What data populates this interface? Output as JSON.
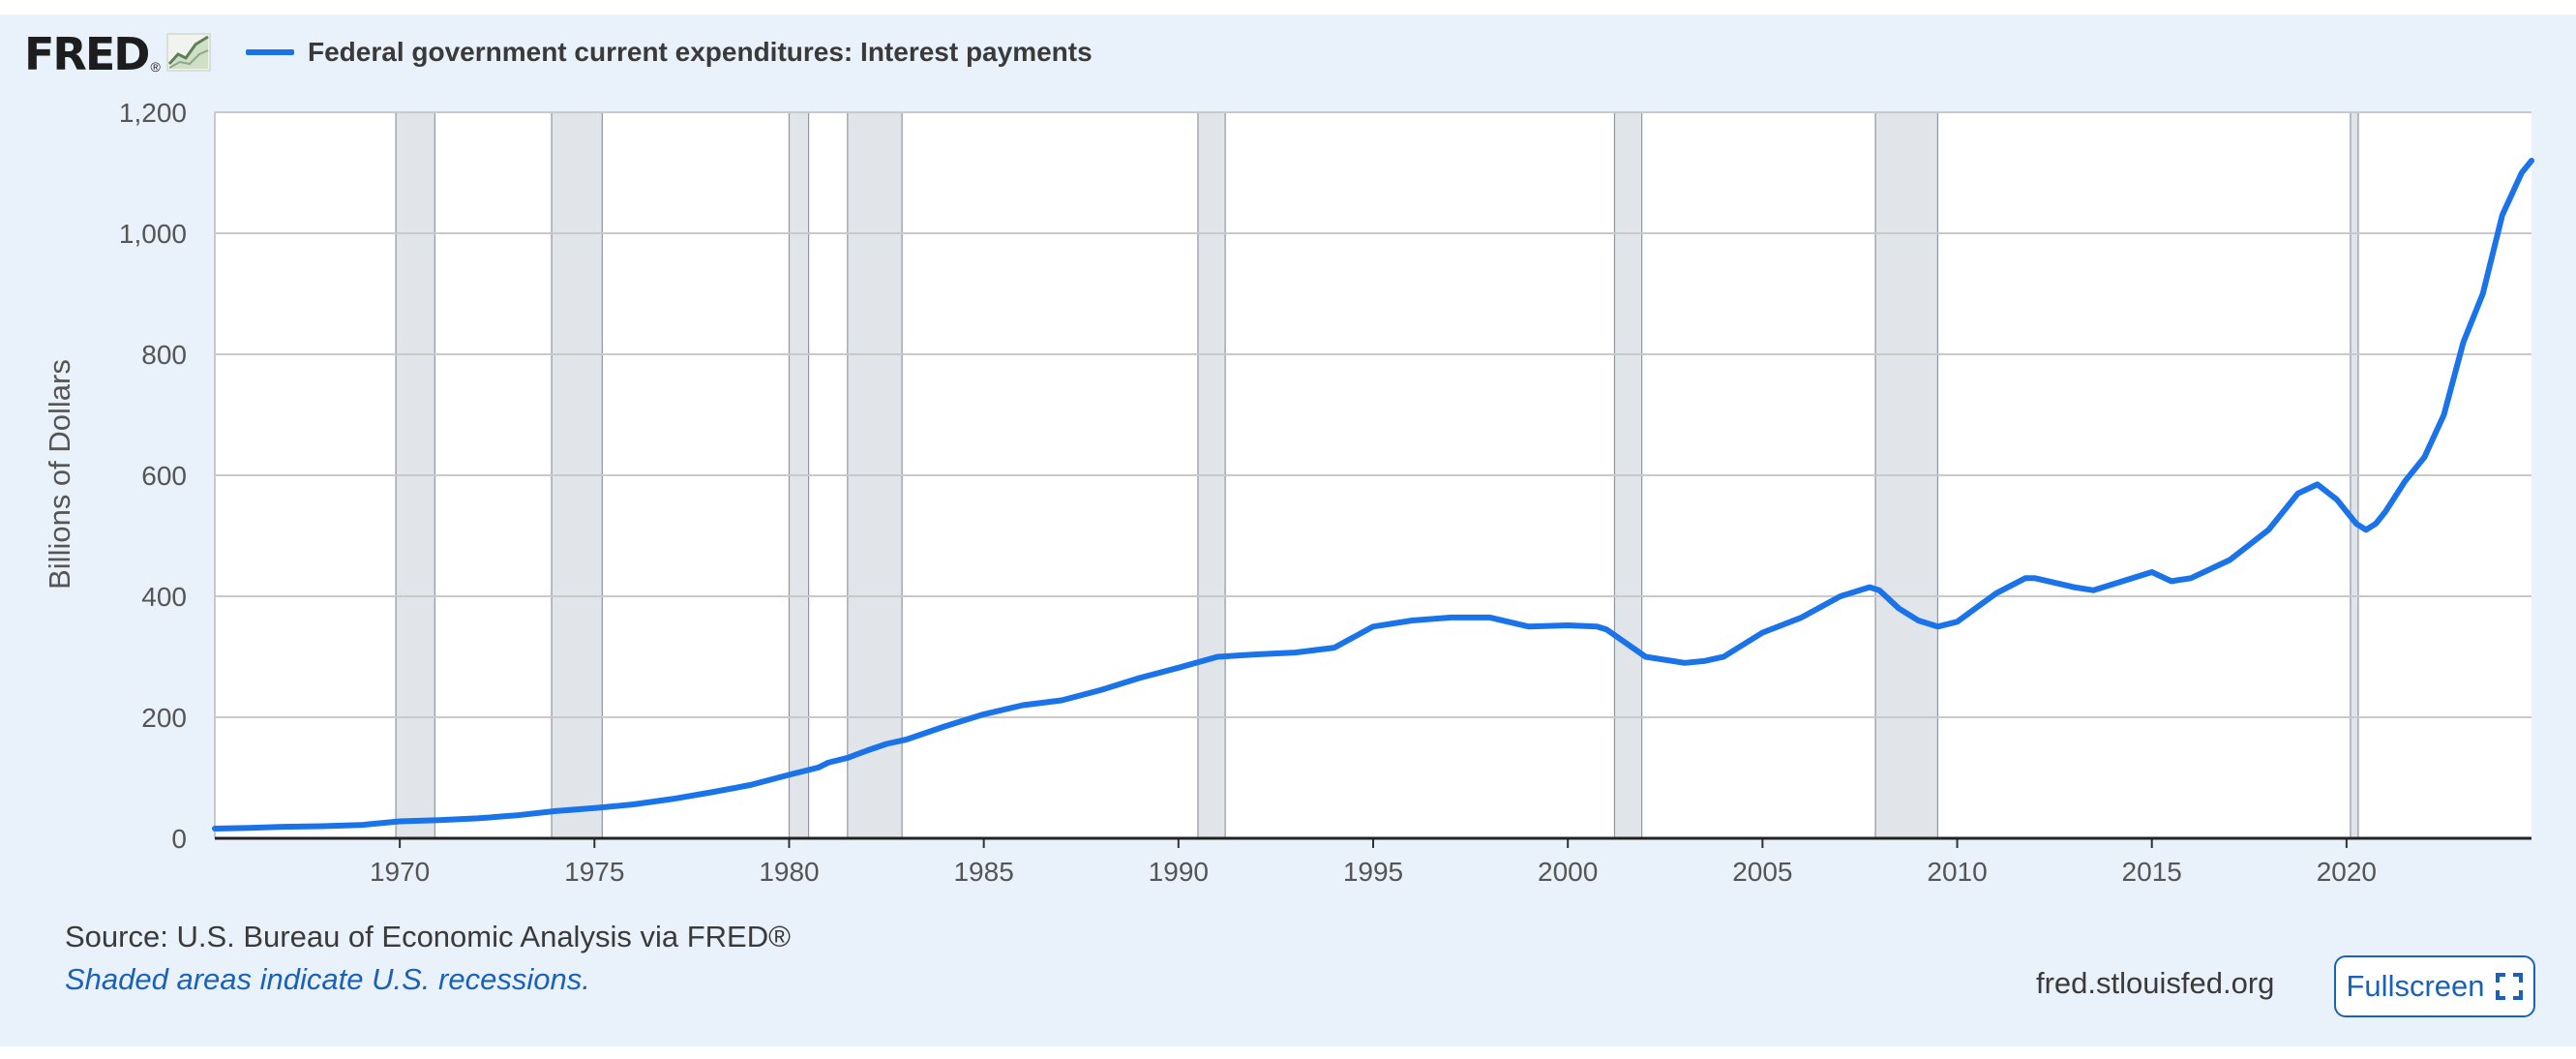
{
  "header": {
    "logo_text": "FRED",
    "logo_mark": "®",
    "logo_icon": "trend-line-chart-icon"
  },
  "footer": {
    "source": "Source: U.S. Bureau of Economic Analysis via FRED®",
    "note": "Shaded areas indicate U.S. recessions.",
    "site": "fred.stlouisfed.org",
    "fullscreen_label": "Fullscreen",
    "fullscreen_icon": "expand-icon"
  },
  "colors": {
    "series": "#1a73e8",
    "recession": "#e1e5ea",
    "frame": "#e9f1fa",
    "link": "#1a62b8"
  },
  "chart_data": {
    "type": "line",
    "title": "",
    "xlabel": "",
    "ylabel": "Billions of Dollars",
    "xlim": [
      1965.25,
      2024.75
    ],
    "ylim": [
      0,
      1200
    ],
    "grid": true,
    "legend_position": "top-left",
    "x_ticks": [
      1970,
      1975,
      1980,
      1985,
      1990,
      1995,
      2000,
      2005,
      2010,
      2015,
      2020
    ],
    "y_ticks": [
      0,
      200,
      400,
      600,
      800,
      1000,
      1200
    ],
    "y_tick_labels": [
      "0",
      "200",
      "400",
      "600",
      "800",
      "1,000",
      "1,200"
    ],
    "recessions": [
      [
        1969.9,
        1970.9
      ],
      [
        1973.9,
        1975.2
      ],
      [
        1980.0,
        1980.5
      ],
      [
        1981.5,
        1982.9
      ],
      [
        1990.5,
        1991.2
      ],
      [
        2001.2,
        2001.9
      ],
      [
        2007.9,
        2009.5
      ],
      [
        2020.1,
        2020.3
      ]
    ],
    "series": [
      {
        "name": "Federal government current expenditures: Interest payments",
        "color": "#1a73e8",
        "x": [
          1965.25,
          1966,
          1967,
          1968,
          1969,
          1970,
          1971,
          1972,
          1973,
          1974,
          1975,
          1976,
          1977,
          1978,
          1979,
          1980,
          1980.75,
          1981,
          1981.5,
          1982,
          1982.5,
          1983,
          1984,
          1985,
          1986,
          1987,
          1988,
          1989,
          1990,
          1991,
          1992,
          1993,
          1994,
          1995,
          1996,
          1997,
          1998,
          1999,
          2000,
          2000.75,
          2001,
          2002,
          2003,
          2003.5,
          2004,
          2005,
          2006,
          2007,
          2007.75,
          2008,
          2008.5,
          2009,
          2009.5,
          2010,
          2011,
          2011.75,
          2012,
          2013,
          2013.5,
          2014,
          2015,
          2015.5,
          2016,
          2017,
          2018,
          2018.75,
          2019.25,
          2019.75,
          2020.25,
          2020.5,
          2020.75,
          2021,
          2021.5,
          2022,
          2022.5,
          2023,
          2023.5,
          2024,
          2024.5,
          2024.75
        ],
        "y": [
          16,
          17,
          19,
          20,
          22,
          28,
          30,
          33,
          38,
          45,
          50,
          56,
          65,
          76,
          88,
          105,
          117,
          125,
          133,
          145,
          156,
          163,
          185,
          205,
          220,
          228,
          245,
          265,
          282,
          300,
          304,
          307,
          315,
          350,
          360,
          365,
          365,
          350,
          352,
          350,
          345,
          300,
          290,
          293,
          300,
          340,
          365,
          400,
          415,
          410,
          380,
          360,
          350,
          358,
          405,
          430,
          430,
          415,
          410,
          420,
          440,
          425,
          430,
          460,
          510,
          570,
          585,
          560,
          520,
          510,
          520,
          540,
          590,
          630,
          700,
          820,
          900,
          1030,
          1100,
          1120
        ]
      }
    ]
  }
}
